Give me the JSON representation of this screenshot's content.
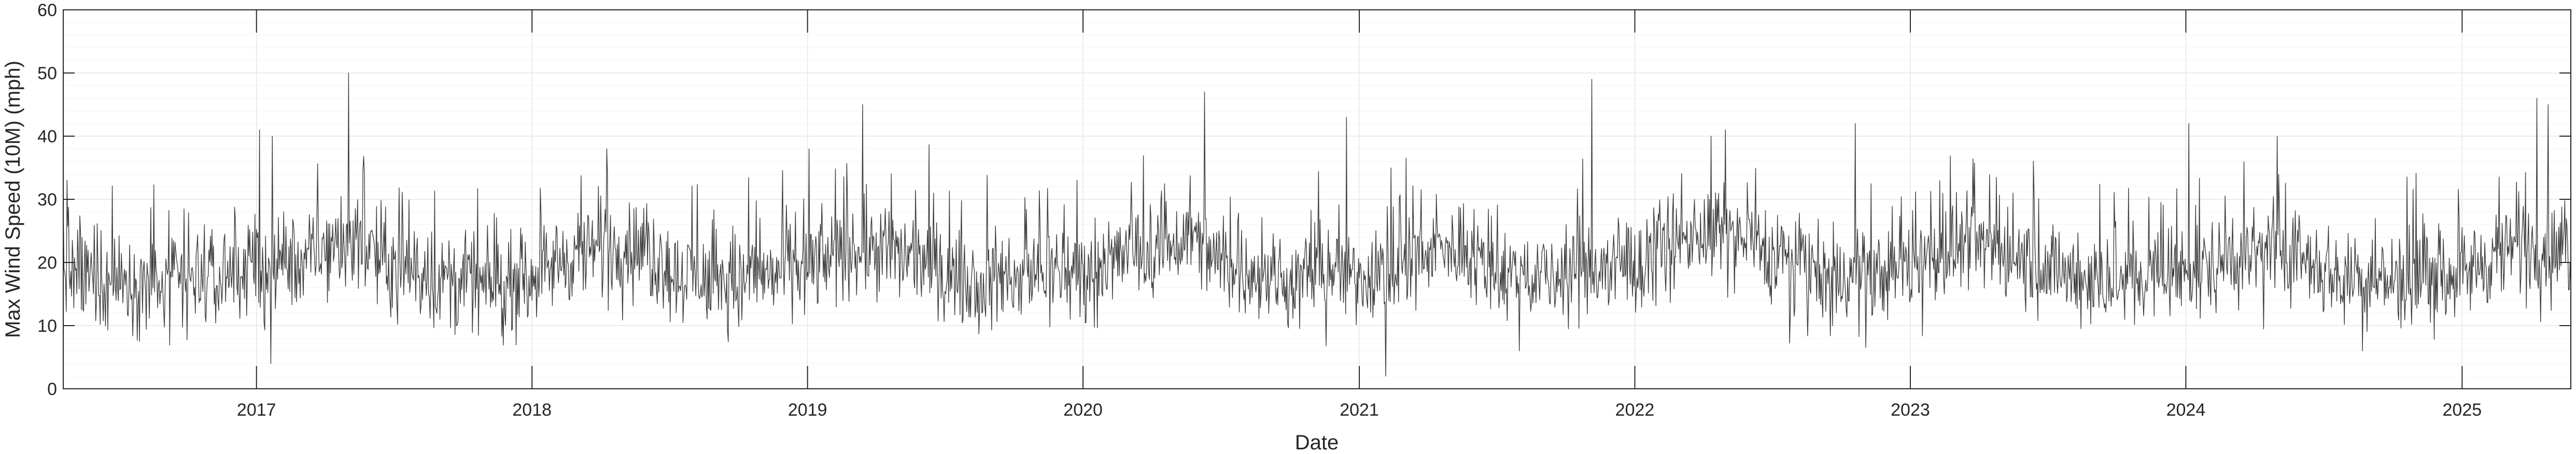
{
  "chart_data": {
    "type": "line",
    "title": "",
    "xlabel": "Date",
    "ylabel": "Max Wind Speed (10M) (mph)",
    "ylim": [
      0,
      60
    ],
    "yticks": [
      0,
      10,
      20,
      30,
      40,
      50,
      60
    ],
    "xlim": [
      "2016-04-20",
      "2025-05-25"
    ],
    "xticks": [
      {
        "date": "2017-01-01",
        "label": "2017"
      },
      {
        "date": "2018-01-01",
        "label": "2018"
      },
      {
        "date": "2019-01-01",
        "label": "2019"
      },
      {
        "date": "2020-01-01",
        "label": "2020"
      },
      {
        "date": "2021-01-01",
        "label": "2021"
      },
      {
        "date": "2022-01-01",
        "label": "2022"
      },
      {
        "date": "2023-01-01",
        "label": "2023"
      },
      {
        "date": "2024-01-01",
        "label": "2024"
      },
      {
        "date": "2025-01-01",
        "label": "2025"
      }
    ],
    "grid": true,
    "minor_grid": true,
    "legend": "none",
    "colors": {
      "line": "#404040",
      "grid": "#e6e6e6",
      "minor_grid": "#f2f2f2",
      "axis": "#262626"
    },
    "series": [
      {
        "values_note_free": true,
        "x": [
          "2016-05",
          "2016-07",
          "2016-09",
          "2016-11",
          "2017-01",
          "2017-03",
          "2017-05",
          "2017-07",
          "2017-09",
          "2017-11",
          "2018-01",
          "2018-03",
          "2018-05",
          "2018-07",
          "2018-09",
          "2018-11",
          "2019-01",
          "2019-03",
          "2019-05",
          "2019-07",
          "2019-09",
          "2019-11",
          "2020-01",
          "2020-03",
          "2020-05",
          "2020-07",
          "2020-09",
          "2020-11",
          "2021-01",
          "2021-03",
          "2021-05",
          "2021-07",
          "2021-09",
          "2021-11",
          "2022-01",
          "2022-03",
          "2022-05",
          "2022-07",
          "2022-09",
          "2022-11",
          "2023-01",
          "2023-03",
          "2023-05",
          "2023-07",
          "2023-09",
          "2023-11",
          "2024-01",
          "2024-03",
          "2024-05",
          "2024-07",
          "2024-09",
          "2024-11",
          "2025-01",
          "2025-03",
          "2025-05"
        ],
        "y": [
          18,
          17,
          16,
          18,
          19,
          21,
          24,
          19,
          17,
          16,
          19,
          22,
          23,
          18,
          17,
          18,
          20,
          23,
          21,
          18,
          17,
          19,
          19,
          22,
          24,
          19,
          17,
          18,
          18,
          21,
          22,
          18,
          17,
          19,
          20,
          24,
          25,
          20,
          17,
          18,
          20,
          23,
          22,
          18,
          17,
          18,
          19,
          21,
          22,
          18,
          17,
          18,
          19,
          23,
          22
        ]
      }
    ],
    "extremes": [
      {
        "date": "2016-04-25",
        "value": 33
      },
      {
        "date": "2017-01-05",
        "value": 41
      },
      {
        "date": "2017-01-20",
        "value": 4
      },
      {
        "date": "2017-05-03",
        "value": 50
      },
      {
        "date": "2018-04-10",
        "value": 38
      },
      {
        "date": "2019-03-15",
        "value": 45
      },
      {
        "date": "2020-06-10",
        "value": 47
      },
      {
        "date": "2020-12-15",
        "value": 43
      },
      {
        "date": "2021-02-05",
        "value": 2
      },
      {
        "date": "2021-11-05",
        "value": 49
      },
      {
        "date": "2022-05-01",
        "value": 41
      },
      {
        "date": "2022-10-20",
        "value": 42
      },
      {
        "date": "2024-01-05",
        "value": 42
      },
      {
        "date": "2025-04-10",
        "value": 46
      },
      {
        "date": "2025-04-25",
        "value": 45
      }
    ]
  }
}
